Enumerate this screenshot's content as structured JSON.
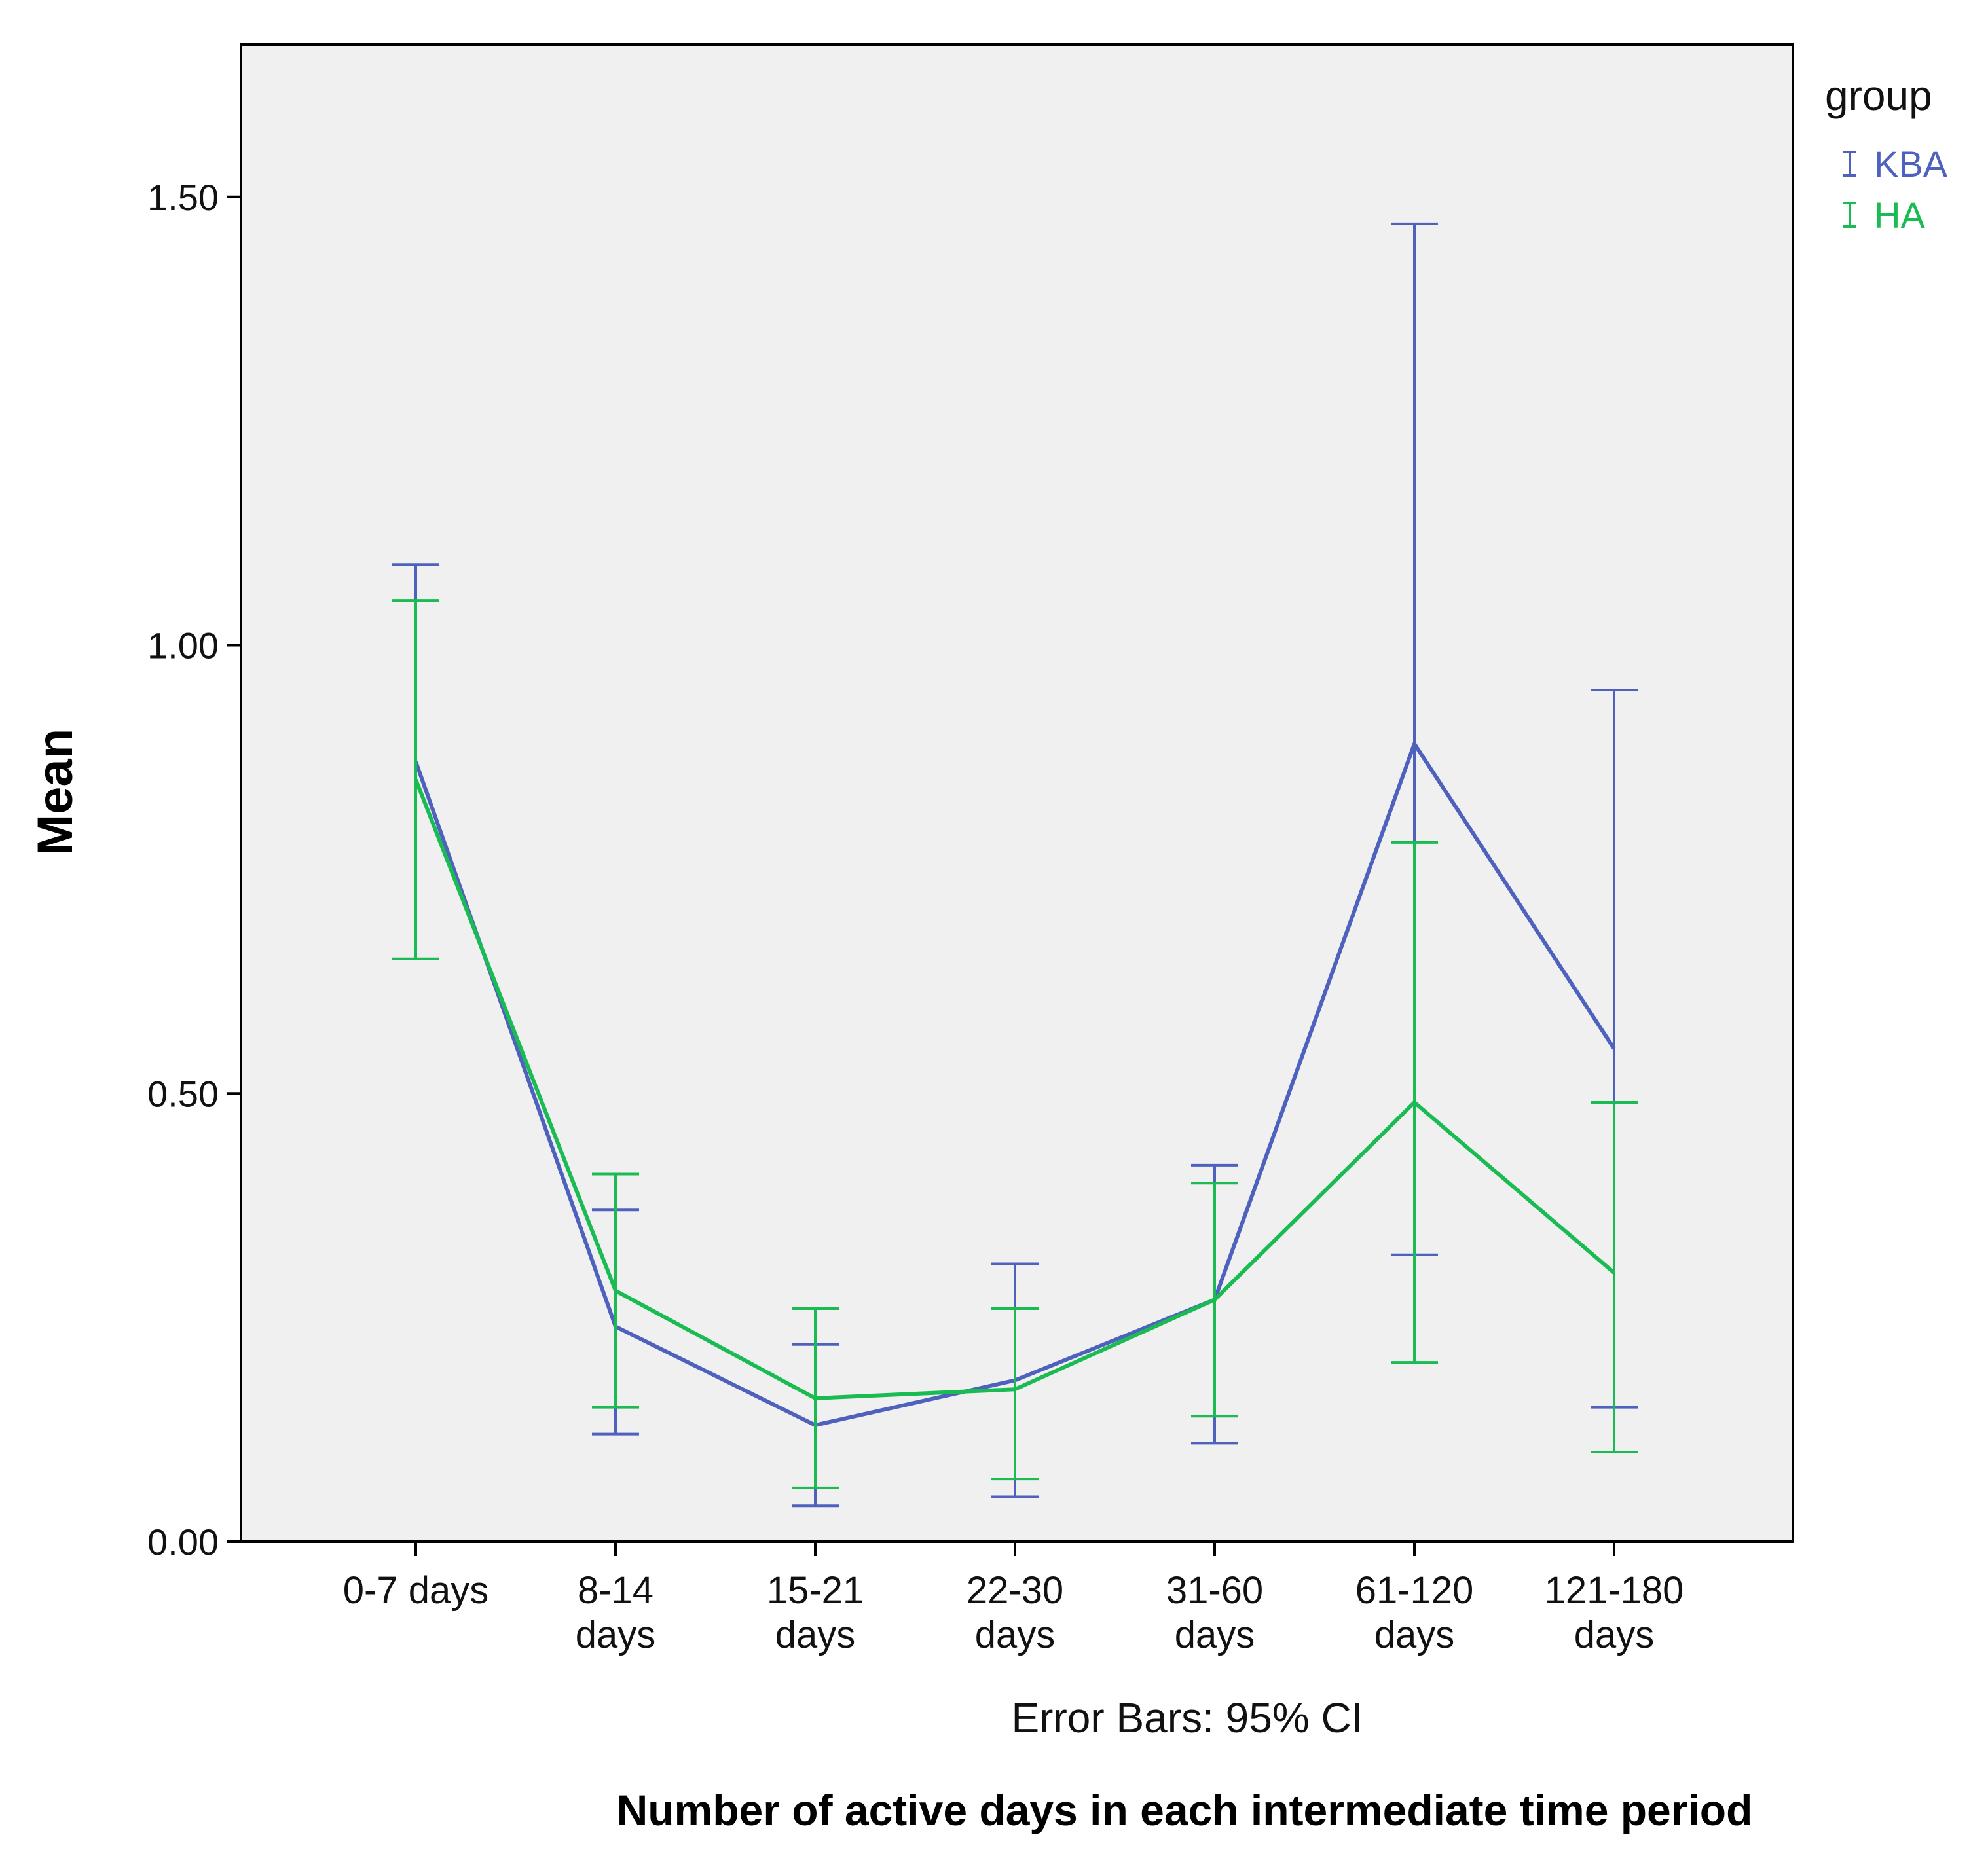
{
  "chart_data": {
    "type": "line",
    "xlabel": "Number of active days in each intermediate time period",
    "ylabel": "Mean",
    "ylim": [
      0,
      1.67
    ],
    "yticks": [
      0.0,
      0.5,
      1.0,
      1.5
    ],
    "ytick_labels": [
      "0.00",
      "0.50",
      "1.00",
      "1.50"
    ],
    "categories": [
      [
        "0-7 days"
      ],
      [
        "8-14",
        "days"
      ],
      [
        "15-21",
        "days"
      ],
      [
        "22-30",
        "days"
      ],
      [
        "31-60",
        "days"
      ],
      [
        "61-120",
        "days"
      ],
      [
        "121-180",
        "days"
      ]
    ],
    "legend_title": "group",
    "legend_position": "top-right",
    "error_bar_note": "Error Bars: 95% CI",
    "series": [
      {
        "name": "KBA",
        "color": "#4e62bd",
        "values": [
          0.87,
          0.24,
          0.13,
          0.18,
          0.27,
          0.89,
          0.55
        ],
        "ci_low": [
          0.65,
          0.12,
          0.04,
          0.05,
          0.11,
          0.32,
          0.15
        ],
        "ci_high": [
          1.09,
          0.37,
          0.22,
          0.31,
          0.42,
          1.47,
          0.95
        ]
      },
      {
        "name": "HA",
        "color": "#1abb52",
        "values": [
          0.85,
          0.28,
          0.16,
          0.17,
          0.27,
          0.49,
          0.3
        ],
        "ci_low": [
          0.65,
          0.15,
          0.06,
          0.07,
          0.14,
          0.2,
          0.1
        ],
        "ci_high": [
          1.05,
          0.41,
          0.26,
          0.26,
          0.4,
          0.78,
          0.49
        ]
      }
    ]
  }
}
